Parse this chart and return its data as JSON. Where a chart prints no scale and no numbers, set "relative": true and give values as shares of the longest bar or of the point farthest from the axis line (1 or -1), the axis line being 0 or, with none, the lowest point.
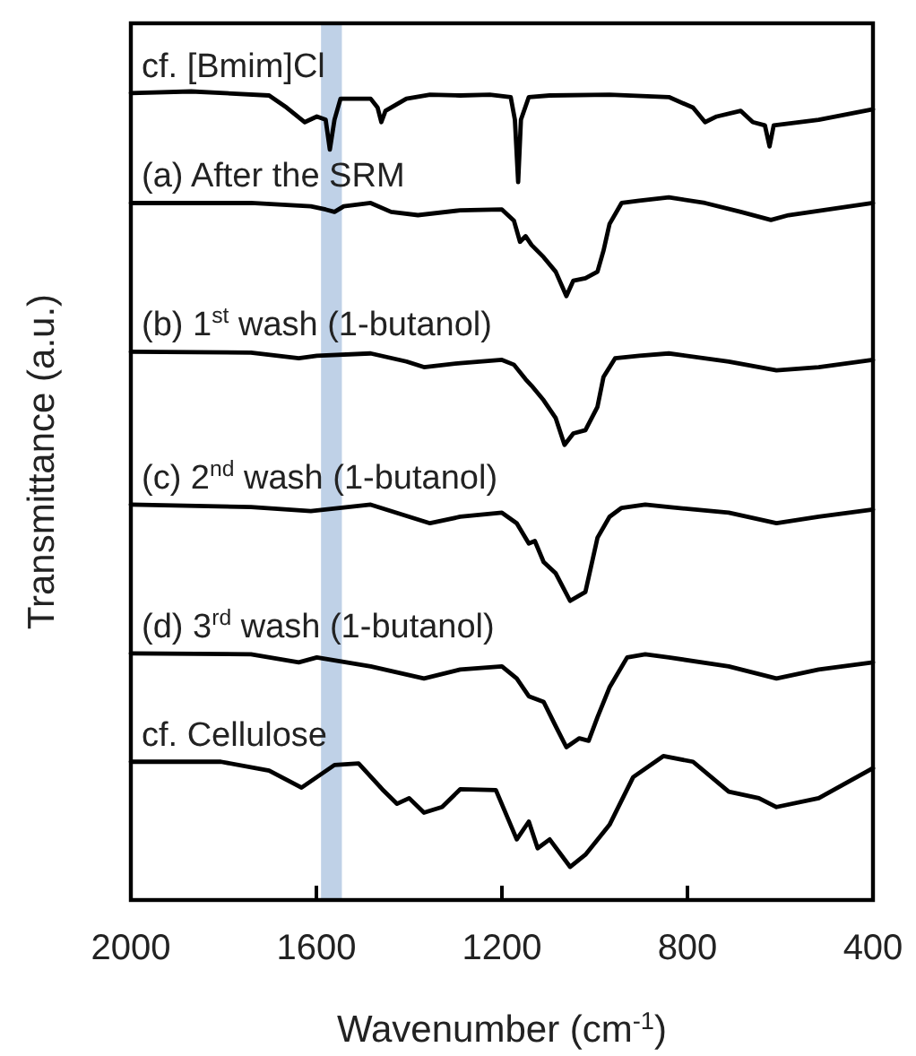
{
  "chart_data": {
    "type": "line",
    "relative": true,
    "xlabel": "Wavenumber (cm$^{-1}$)",
    "ylabel": "Transmittance (a.u.)",
    "xlim": [
      2000,
      400
    ],
    "xticks": [
      2000,
      1600,
      1200,
      800,
      400
    ],
    "bands": [
      {
        "axis": "x",
        "from": 1590,
        "to": 1545,
        "color": "#b8cce4"
      }
    ],
    "series": [
      {
        "name": "cf. [Bmim]Cl",
        "color": "#000000",
        "x": [
          2000,
          1870,
          1702,
          1664,
          1625,
          1599,
          1580,
          1571,
          1561,
          1548,
          1483,
          1468,
          1460,
          1451,
          1406,
          1355,
          1290,
          1226,
          1181,
          1172,
          1165,
          1159,
          1142,
          1097,
          968,
          840,
          788,
          762,
          737,
          685,
          659,
          633,
          623,
          614,
          517,
          400
        ],
        "values": [
          0.998,
          1.0,
          0.995,
          0.98,
          0.962,
          0.969,
          0.965,
          0.928,
          0.965,
          0.991,
          0.991,
          0.98,
          0.962,
          0.976,
          0.991,
          0.996,
          0.995,
          0.996,
          0.993,
          0.965,
          0.888,
          0.965,
          0.993,
          0.995,
          0.996,
          0.993,
          0.98,
          0.962,
          0.969,
          0.976,
          0.962,
          0.958,
          0.932,
          0.958,
          0.965,
          0.978
        ]
      },
      {
        "name": "(a) After the SRM",
        "color": "#000000",
        "x": [
          2000,
          1741,
          1612,
          1580,
          1561,
          1541,
          1483,
          1439,
          1381,
          1290,
          1200,
          1174,
          1161,
          1149,
          1136,
          1110,
          1084,
          1061,
          1046,
          1020,
          994,
          981,
          968,
          942,
          904,
          840,
          762,
          685,
          620,
          582,
          400
        ],
        "values": [
          0.862,
          0.862,
          0.858,
          0.854,
          0.851,
          0.858,
          0.862,
          0.851,
          0.847,
          0.853,
          0.854,
          0.84,
          0.814,
          0.821,
          0.81,
          0.795,
          0.777,
          0.747,
          0.766,
          0.769,
          0.777,
          0.803,
          0.836,
          0.862,
          0.865,
          0.869,
          0.862,
          0.851,
          0.841,
          0.847,
          0.862
        ]
      },
      {
        "name": "(b) 1$^{st}$ wash (1-butanol)",
        "color": "#000000",
        "x": [
          2000,
          1741,
          1638,
          1599,
          1483,
          1406,
          1368,
          1290,
          1200,
          1174,
          1149,
          1136,
          1110,
          1084,
          1065,
          1046,
          1020,
          994,
          981,
          956,
          904,
          840,
          711,
          608,
          517,
          400
        ],
        "values": [
          0.678,
          0.677,
          0.67,
          0.673,
          0.676,
          0.666,
          0.659,
          0.664,
          0.668,
          0.662,
          0.644,
          0.636,
          0.618,
          0.596,
          0.563,
          0.577,
          0.581,
          0.61,
          0.647,
          0.67,
          0.673,
          0.676,
          0.666,
          0.655,
          0.659,
          0.668
        ]
      },
      {
        "name": "(c) 2$^{nd}$ wash (1-butanol)",
        "color": "#000000",
        "x": [
          2000,
          1741,
          1612,
          1483,
          1355,
          1290,
          1200,
          1168,
          1142,
          1129,
          1110,
          1084,
          1053,
          1020,
          994,
          968,
          942,
          891,
          840,
          711,
          608,
          517,
          400
        ],
        "values": [
          0.489,
          0.486,
          0.481,
          0.489,
          0.466,
          0.474,
          0.479,
          0.466,
          0.441,
          0.444,
          0.418,
          0.404,
          0.37,
          0.381,
          0.448,
          0.474,
          0.485,
          0.489,
          0.486,
          0.479,
          0.466,
          0.474,
          0.483
        ]
      },
      {
        "name": "(d) 3$^{rd}$ wash (1-butanol)",
        "color": "#000000",
        "x": [
          2000,
          1741,
          1638,
          1599,
          1483,
          1368,
          1290,
          1200,
          1168,
          1142,
          1110,
          1084,
          1061,
          1033,
          1013,
          994,
          968,
          930,
          891,
          840,
          711,
          608,
          517,
          400
        ],
        "values": [
          0.305,
          0.304,
          0.294,
          0.3,
          0.289,
          0.274,
          0.285,
          0.289,
          0.274,
          0.252,
          0.245,
          0.215,
          0.189,
          0.2,
          0.197,
          0.226,
          0.263,
          0.3,
          0.304,
          0.3,
          0.289,
          0.274,
          0.285,
          0.294
        ]
      },
      {
        "name": "cf. Cellulose",
        "color": "#000000",
        "x": [
          2000,
          1806,
          1702,
          1632,
          1561,
          1509,
          1458,
          1426,
          1400,
          1368,
          1329,
          1290,
          1213,
          1168,
          1142,
          1123,
          1097,
          1053,
          1020,
          968,
          917,
          852,
          788,
          711,
          646,
          608,
          517,
          400
        ],
        "values": [
          0.171,
          0.171,
          0.16,
          0.139,
          0.167,
          0.169,
          0.137,
          0.119,
          0.126,
          0.108,
          0.115,
          0.137,
          0.136,
          0.075,
          0.097,
          0.064,
          0.075,
          0.041,
          0.056,
          0.093,
          0.152,
          0.178,
          0.171,
          0.134,
          0.126,
          0.115,
          0.126,
          0.163
        ]
      }
    ]
  }
}
